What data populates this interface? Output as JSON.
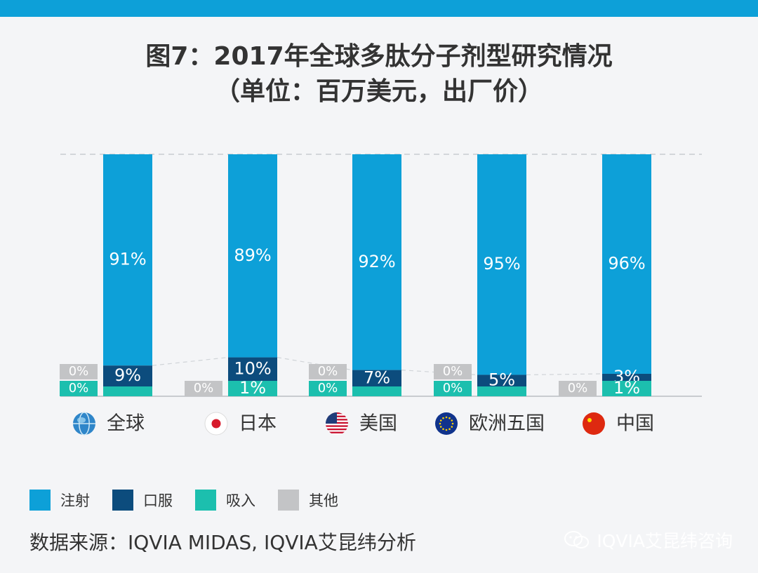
{
  "title": {
    "line1": "图7：2017年全球多肽分子剂型研究情况",
    "line2": "（单位：百万美元，出厂价）"
  },
  "colors": {
    "注射": "#0da0d8",
    "口服": "#0c4c7d",
    "吸入": "#1cbfae",
    "其他": "#c3c4c6",
    "background": "#f4f5f7"
  },
  "chart_data": {
    "type": "bar",
    "stacked": true,
    "categories": [
      "全球",
      "日本",
      "美国",
      "欧洲五国",
      "中国"
    ],
    "category_icons": [
      "globe-icon",
      "japan-flag-icon",
      "us-flag-icon",
      "eu-flag-icon",
      "china-flag-icon"
    ],
    "series": [
      {
        "name": "注射",
        "values": [
          91,
          89,
          92,
          95,
          96
        ],
        "labels": [
          "91%",
          "89%",
          "92%",
          "95%",
          "96%"
        ]
      },
      {
        "name": "口服",
        "values": [
          9,
          10,
          7,
          5,
          3
        ],
        "labels": [
          "9%",
          "10%",
          "7%",
          "5%",
          "3%"
        ]
      },
      {
        "name": "吸入",
        "values": [
          0,
          1,
          0,
          0,
          1
        ],
        "labels": [
          "0%",
          "1%",
          "0%",
          "0%",
          "1%"
        ]
      },
      {
        "name": "其他",
        "values": [
          0,
          0,
          0,
          0,
          0
        ],
        "labels": [
          "0%",
          "0%",
          "0%",
          "0%",
          "0%"
        ]
      }
    ],
    "ylim": [
      0,
      100
    ],
    "legend_position": "bottom-left",
    "grid": false
  },
  "legend": [
    {
      "label": "注射",
      "color": "#0da0d8"
    },
    {
      "label": "口服",
      "color": "#0c4c7d"
    },
    {
      "label": "吸入",
      "color": "#1cbfae"
    },
    {
      "label": "其他",
      "color": "#c3c4c6"
    }
  ],
  "source": "数据来源：IQVIA MIDAS, IQVIA艾昆纬分析",
  "watermark": "IQVIA艾昆纬咨询"
}
